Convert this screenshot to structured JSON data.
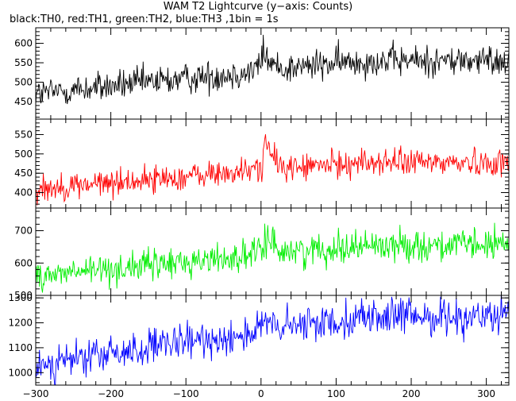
{
  "title": "WAM T2 Lightcurve (y−axis: Counts)",
  "subtitle": "black:TH0, red:TH1, green:TH2, blue:TH3 ,1bin = 1s",
  "chart_data": {
    "type": "line",
    "x_range": [
      -300,
      330
    ],
    "x_ticks": [
      -300,
      -200,
      -100,
      0,
      100,
      200,
      300
    ],
    "panels": [
      {
        "name": "TH0",
        "color": "#000000",
        "ylim": [
          405,
          640
        ],
        "y_ticks": [
          450,
          500,
          550,
          600
        ],
        "base_start": 470,
        "base_end": 555,
        "noise": 25,
        "peak_x": 3,
        "peak_amp": 55,
        "dip_x": -275,
        "dip_depth": 0
      },
      {
        "name": "TH1",
        "color": "#ff0000",
        "ylim": [
          360,
          590
        ],
        "y_ticks": [
          400,
          450,
          500,
          550
        ],
        "base_start": 410,
        "base_end": 478,
        "noise": 22,
        "peak_x": 6,
        "peak_amp": 85,
        "dip_x": 155,
        "dip_depth": 0
      },
      {
        "name": "TH2",
        "color": "#00ee00",
        "ylim": [
          500,
          770
        ],
        "y_ticks": [
          500,
          600,
          700
        ],
        "base_start": 560,
        "base_end": 655,
        "noise": 30,
        "peak_x": 8,
        "peak_amp": 75,
        "dip_x": 0,
        "dip_depth": 0
      },
      {
        "name": "TH3",
        "color": "#0000ff",
        "ylim": [
          950,
          1310
        ],
        "y_ticks": [
          1000,
          1100,
          1200,
          1300
        ],
        "base_start": 1030,
        "base_end": 1225,
        "noise": 45,
        "peak_x": 5,
        "peak_amp": 40,
        "dip_x": 0,
        "dip_depth": 0
      }
    ]
  }
}
